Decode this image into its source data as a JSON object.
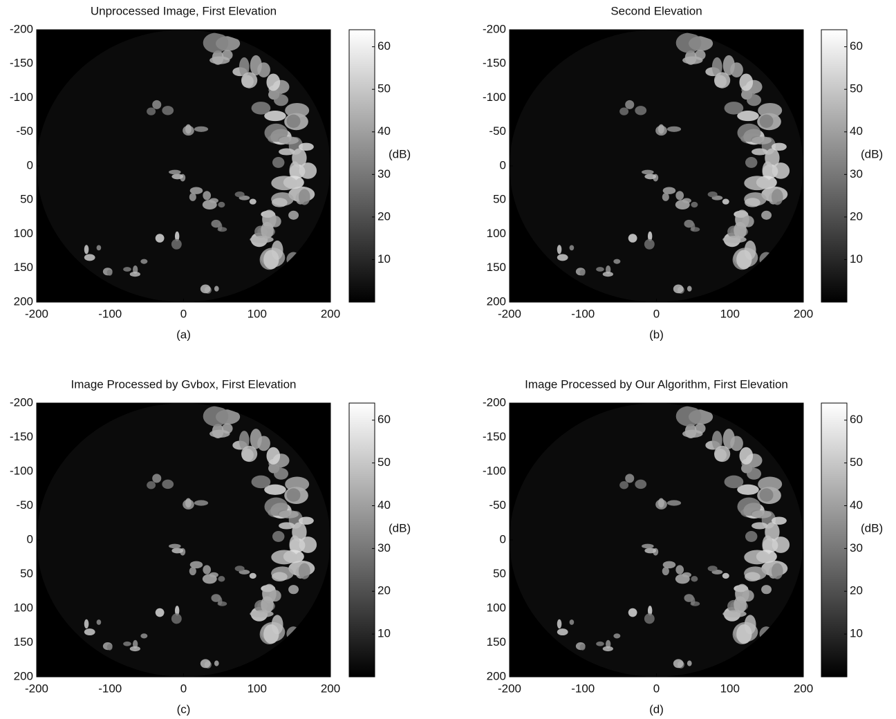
{
  "chart_data": [
    {
      "type": "image",
      "title": "Unprocessed Image, First Elevation",
      "caption": "(a)",
      "xlim": [
        -200,
        200
      ],
      "xticks": [
        -200,
        -100,
        0,
        100,
        200
      ],
      "ylim": [
        200,
        -200
      ],
      "yticks": [
        -200,
        -150,
        -100,
        -50,
        0,
        50,
        100,
        150,
        200
      ],
      "colorbar": {
        "label": "(dB)",
        "clim": [
          0,
          64
        ],
        "ticks": [
          10,
          20,
          30,
          40,
          50,
          60
        ]
      }
    },
    {
      "type": "image",
      "title": "Second Elevation",
      "caption": "(b)",
      "xlim": [
        -200,
        200
      ],
      "xticks": [
        -200,
        -100,
        0,
        100,
        200
      ],
      "ylim": [
        200,
        -200
      ],
      "yticks": [
        -200,
        -150,
        -100,
        -50,
        0,
        50,
        100,
        150,
        200
      ],
      "colorbar": {
        "label": "(dB)",
        "clim": [
          0,
          64
        ],
        "ticks": [
          10,
          20,
          30,
          40,
          50,
          60
        ]
      }
    },
    {
      "type": "image",
      "title": "Image Processed by Gvbox, First Elevation",
      "caption": "(c)",
      "xlim": [
        -200,
        200
      ],
      "xticks": [
        -200,
        -100,
        0,
        100,
        200
      ],
      "ylim": [
        200,
        -200
      ],
      "yticks": [
        -200,
        -150,
        -100,
        -50,
        0,
        50,
        100,
        150,
        200
      ],
      "colorbar": {
        "label": "(dB)",
        "clim": [
          0,
          64
        ],
        "ticks": [
          10,
          20,
          30,
          40,
          50,
          60
        ]
      }
    },
    {
      "type": "image",
      "title": "Image Processed by Our Algorithm, First Elevation",
      "caption": "(d)",
      "xlim": [
        -200,
        200
      ],
      "xticks": [
        -200,
        -100,
        0,
        100,
        200
      ],
      "ylim": [
        200,
        -200
      ],
      "yticks": [
        -200,
        -150,
        -100,
        -50,
        0,
        50,
        100,
        150,
        200
      ],
      "colorbar": {
        "label": "(dB)",
        "clim": [
          0,
          64
        ],
        "ticks": [
          10,
          20,
          30,
          40,
          50,
          60
        ]
      }
    }
  ]
}
